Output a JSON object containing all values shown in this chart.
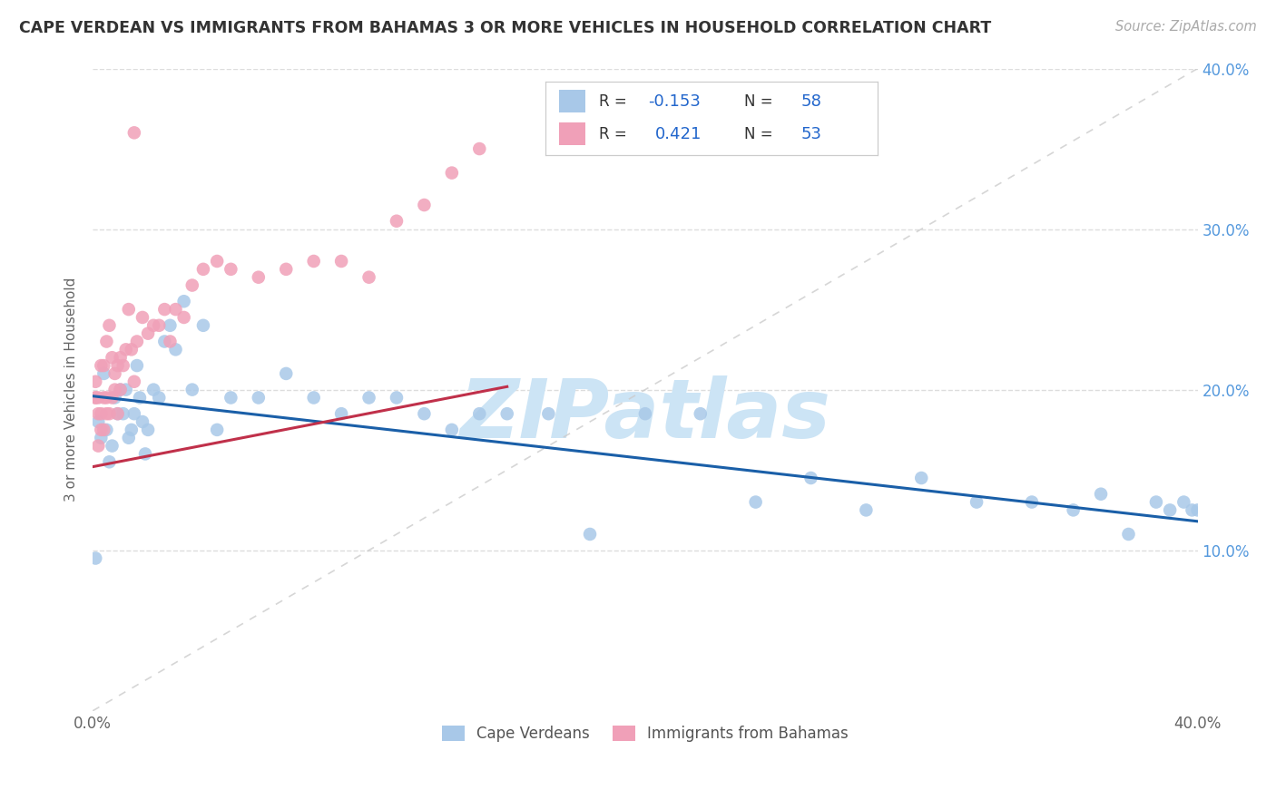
{
  "title": "CAPE VERDEAN VS IMMIGRANTS FROM BAHAMAS 3 OR MORE VEHICLES IN HOUSEHOLD CORRELATION CHART",
  "source": "Source: ZipAtlas.com",
  "ylabel": "3 or more Vehicles in Household",
  "xlim": [
    0.0,
    0.4
  ],
  "ylim": [
    0.0,
    0.4
  ],
  "r_blue": -0.153,
  "n_blue": 58,
  "r_pink": 0.421,
  "n_pink": 53,
  "blue_color": "#a8c8e8",
  "pink_color": "#f0a0b8",
  "trend_blue_color": "#1a5fa8",
  "trend_pink_color": "#c0304a",
  "diag_color": "#cccccc",
  "legend_label_blue": "Cape Verdeans",
  "legend_label_pink": "Immigrants from Bahamas",
  "blue_x": [
    0.001,
    0.002,
    0.003,
    0.004,
    0.005,
    0.006,
    0.007,
    0.008,
    0.009,
    0.01,
    0.011,
    0.012,
    0.013,
    0.014,
    0.015,
    0.016,
    0.017,
    0.018,
    0.019,
    0.02,
    0.022,
    0.024,
    0.026,
    0.028,
    0.03,
    0.033,
    0.036,
    0.04,
    0.045,
    0.05,
    0.06,
    0.07,
    0.08,
    0.09,
    0.1,
    0.11,
    0.12,
    0.13,
    0.14,
    0.15,
    0.165,
    0.18,
    0.2,
    0.22,
    0.24,
    0.26,
    0.28,
    0.3,
    0.32,
    0.34,
    0.355,
    0.365,
    0.375,
    0.385,
    0.39,
    0.395,
    0.398,
    0.4
  ],
  "blue_y": [
    0.095,
    0.18,
    0.17,
    0.21,
    0.175,
    0.155,
    0.165,
    0.195,
    0.185,
    0.2,
    0.185,
    0.2,
    0.17,
    0.175,
    0.185,
    0.215,
    0.195,
    0.18,
    0.16,
    0.175,
    0.2,
    0.195,
    0.23,
    0.24,
    0.225,
    0.255,
    0.2,
    0.24,
    0.175,
    0.195,
    0.195,
    0.21,
    0.195,
    0.185,
    0.195,
    0.195,
    0.185,
    0.175,
    0.185,
    0.185,
    0.185,
    0.11,
    0.185,
    0.185,
    0.13,
    0.145,
    0.125,
    0.145,
    0.13,
    0.13,
    0.125,
    0.135,
    0.11,
    0.13,
    0.125,
    0.13,
    0.125,
    0.125
  ],
  "pink_x": [
    0.001,
    0.001,
    0.001,
    0.002,
    0.002,
    0.002,
    0.003,
    0.003,
    0.003,
    0.004,
    0.004,
    0.004,
    0.005,
    0.005,
    0.005,
    0.006,
    0.006,
    0.007,
    0.007,
    0.008,
    0.008,
    0.009,
    0.009,
    0.01,
    0.01,
    0.011,
    0.012,
    0.013,
    0.014,
    0.015,
    0.016,
    0.018,
    0.02,
    0.022,
    0.024,
    0.026,
    0.028,
    0.03,
    0.033,
    0.036,
    0.04,
    0.045,
    0.05,
    0.06,
    0.07,
    0.08,
    0.09,
    0.1,
    0.11,
    0.12,
    0.13,
    0.14,
    0.015
  ],
  "pink_y": [
    0.195,
    0.195,
    0.205,
    0.195,
    0.185,
    0.165,
    0.175,
    0.185,
    0.215,
    0.175,
    0.215,
    0.195,
    0.195,
    0.185,
    0.23,
    0.24,
    0.185,
    0.22,
    0.195,
    0.2,
    0.21,
    0.185,
    0.215,
    0.2,
    0.22,
    0.215,
    0.225,
    0.25,
    0.225,
    0.205,
    0.23,
    0.245,
    0.235,
    0.24,
    0.24,
    0.25,
    0.23,
    0.25,
    0.245,
    0.265,
    0.275,
    0.28,
    0.275,
    0.27,
    0.275,
    0.28,
    0.28,
    0.27,
    0.305,
    0.315,
    0.335,
    0.35,
    0.36
  ],
  "watermark": "ZIPatlas",
  "watermark_color": "#cce4f5",
  "background_color": "#ffffff",
  "grid_color": "#dddddd"
}
